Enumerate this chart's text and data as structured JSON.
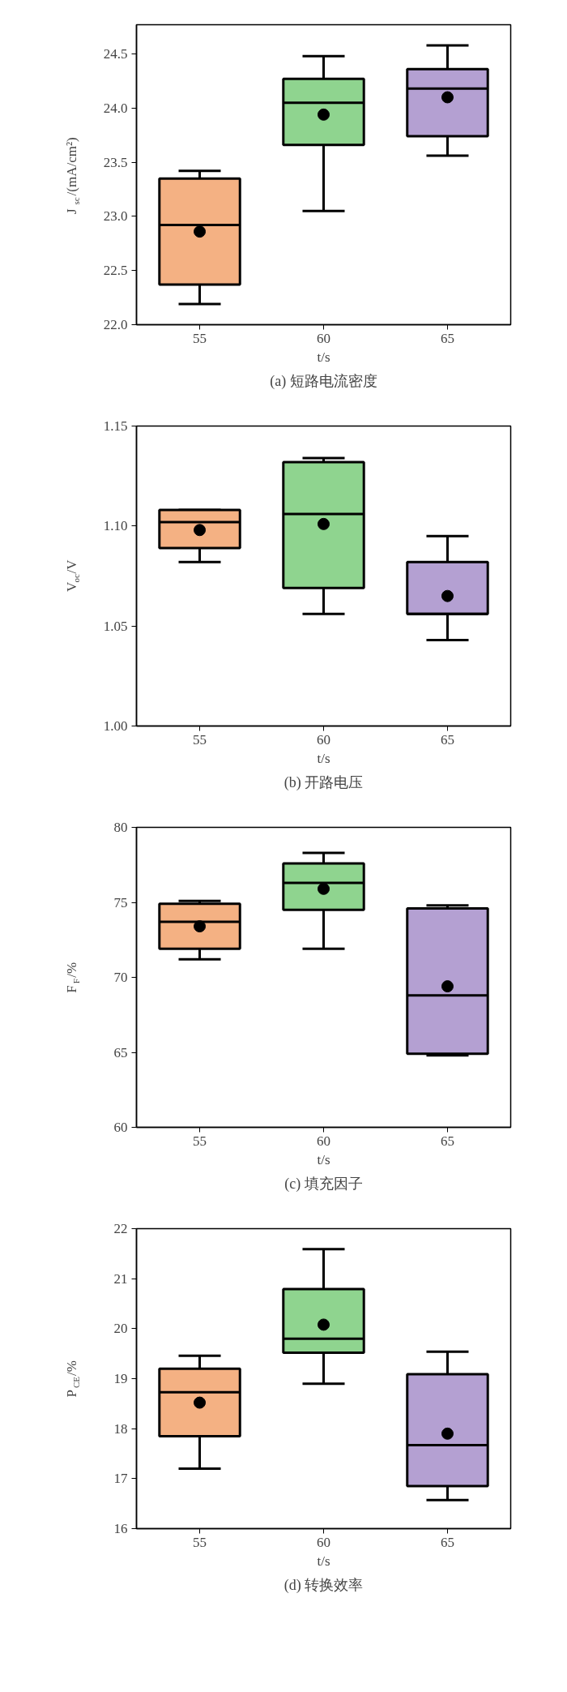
{
  "chart_data": [
    {
      "type": "box",
      "title": "(a) 短路电流密度",
      "xlabel": "t/s",
      "ylabel": "J$_{sc}$/(mA/cm²)",
      "categories": [
        "55",
        "60",
        "65"
      ],
      "colors": [
        "#f4b183",
        "#8fd48f",
        "#b4a0d2"
      ],
      "ylim": [
        22.0,
        24.77
      ],
      "yticks": [
        {
          "value": 22.0,
          "label": "22.0"
        },
        {
          "value": 22.5,
          "label": "22.5"
        },
        {
          "value": 23.0,
          "label": "23.0"
        },
        {
          "value": 23.5,
          "label": "23.5"
        },
        {
          "value": 24.0,
          "label": "24.0"
        },
        {
          "value": 24.5,
          "label": "24.5"
        }
      ],
      "grid": false,
      "boxes": [
        {
          "low": 22.19,
          "q1": 22.37,
          "median": 22.92,
          "q3": 23.35,
          "high": 23.42,
          "mean": 22.86
        },
        {
          "low": 23.05,
          "q1": 23.66,
          "median": 24.05,
          "q3": 24.27,
          "high": 24.48,
          "mean": 23.94
        },
        {
          "low": 23.56,
          "q1": 23.74,
          "median": 24.18,
          "q3": 24.36,
          "high": 24.58,
          "mean": 24.1
        }
      ]
    },
    {
      "type": "box",
      "title": "(b) 开路电压",
      "xlabel": "t/s",
      "ylabel": "V$_{oc}$/V",
      "categories": [
        "55",
        "60",
        "65"
      ],
      "colors": [
        "#f4b183",
        "#8fd48f",
        "#b4a0d2"
      ],
      "ylim": [
        1.0,
        1.15
      ],
      "yticks": [
        {
          "value": 1.0,
          "label": "1.00"
        },
        {
          "value": 1.05,
          "label": "1.05"
        },
        {
          "value": 1.1,
          "label": "1.10"
        },
        {
          "value": 1.15,
          "label": "1.15"
        }
      ],
      "grid": false,
      "boxes": [
        {
          "low": 1.082,
          "q1": 1.089,
          "median": 1.102,
          "q3": 1.108,
          "high": 1.108,
          "mean": 1.098
        },
        {
          "low": 1.056,
          "q1": 1.069,
          "median": 1.106,
          "q3": 1.132,
          "high": 1.134,
          "mean": 1.101
        },
        {
          "low": 1.043,
          "q1": 1.056,
          "median": 1.056,
          "q3": 1.082,
          "high": 1.095,
          "mean": 1.065
        }
      ]
    },
    {
      "type": "box",
      "title": "(c) 填充因子",
      "xlabel": "t/s",
      "ylabel": "F$_{F}$/%",
      "categories": [
        "55",
        "60",
        "65"
      ],
      "colors": [
        "#f4b183",
        "#8fd48f",
        "#b4a0d2"
      ],
      "ylim": [
        60,
        80
      ],
      "yticks": [
        60,
        65,
        70,
        75,
        80
      ],
      "grid": false,
      "boxes": [
        {
          "low": 71.2,
          "q1": 71.9,
          "median": 73.7,
          "q3": 74.9,
          "high": 75.1,
          "mean": 73.4
        },
        {
          "low": 71.9,
          "q1": 74.5,
          "median": 76.3,
          "q3": 77.6,
          "high": 78.3,
          "mean": 75.9
        },
        {
          "low": 64.8,
          "q1": 64.9,
          "median": 68.8,
          "q3": 74.6,
          "high": 74.8,
          "mean": 69.4
        }
      ]
    },
    {
      "type": "box",
      "title": "(d) 转换效率",
      "xlabel": "t/s",
      "ylabel": "P$_{CE}$/%",
      "categories": [
        "55",
        "60",
        "65"
      ],
      "colors": [
        "#f4b183",
        "#8fd48f",
        "#b4a0d2"
      ],
      "ylim": [
        16,
        22
      ],
      "yticks": [
        16,
        17,
        18,
        19,
        20,
        21,
        22
      ],
      "grid": false,
      "boxes": [
        {
          "low": 17.2,
          "q1": 17.85,
          "median": 18.73,
          "q3": 19.2,
          "high": 19.46,
          "mean": 18.52
        },
        {
          "low": 18.9,
          "q1": 19.52,
          "median": 19.8,
          "q3": 20.79,
          "high": 21.59,
          "mean": 20.08
        },
        {
          "low": 16.57,
          "q1": 16.85,
          "median": 17.67,
          "q3": 19.09,
          "high": 19.54,
          "mean": 17.9
        }
      ]
    }
  ]
}
